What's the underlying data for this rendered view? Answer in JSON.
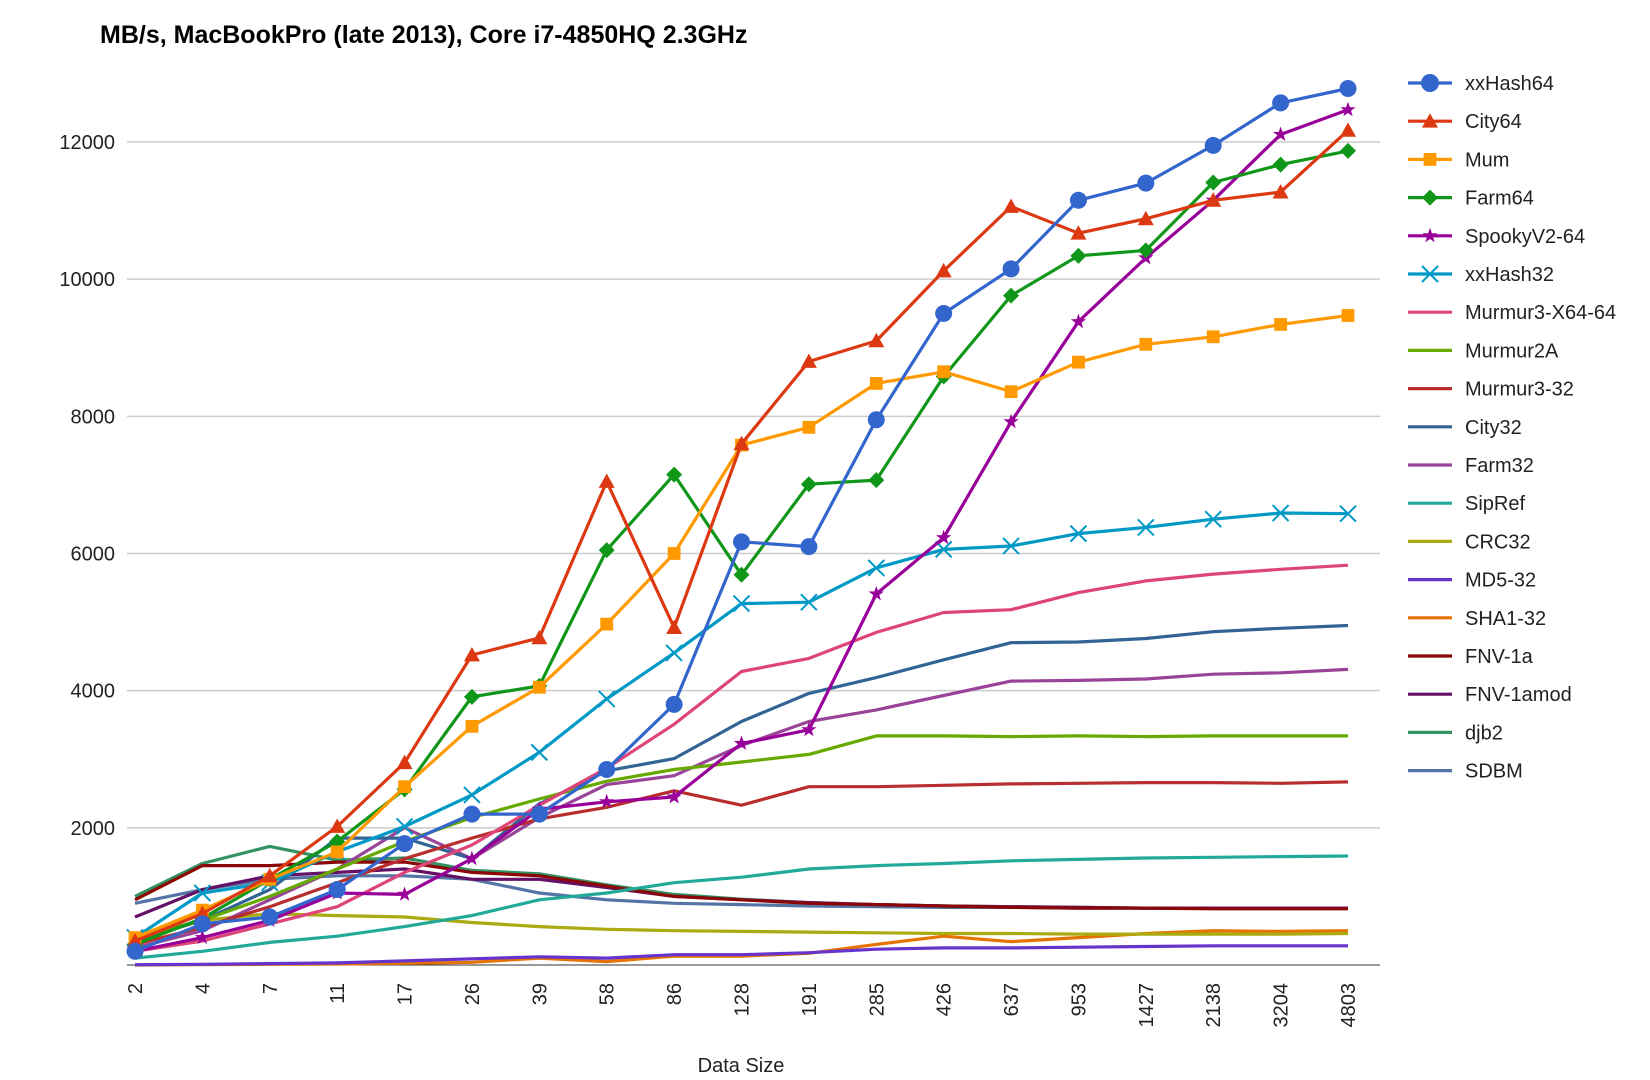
{
  "chart_data": {
    "type": "line",
    "title": "MB/s, MacBookPro (late 2013), Core i7-4850HQ 2.3GHz",
    "xlabel": "Data Size",
    "ylabel": "",
    "categories": [
      "2",
      "4",
      "7",
      "11",
      "17",
      "26",
      "39",
      "58",
      "86",
      "128",
      "191",
      "285",
      "426",
      "637",
      "953",
      "1427",
      "2138",
      "3204",
      "4803"
    ],
    "ylim": [
      0,
      12800
    ],
    "yticks": [
      2000,
      4000,
      6000,
      8000,
      10000,
      12000
    ],
    "grid": true,
    "legend": "right",
    "series": [
      {
        "name": "xxHash64",
        "color": "#3366cc",
        "marker": "circle",
        "values": [
          200,
          600,
          700,
          1100,
          1770,
          2200,
          2200,
          2850,
          3800,
          6170,
          6100,
          7950,
          9500,
          10150,
          11150,
          11400,
          11950,
          12570,
          12780
        ]
      },
      {
        "name": "City64",
        "color": "#dc3912",
        "marker": "triangle",
        "values": [
          350,
          750,
          1300,
          2020,
          2950,
          4520,
          4770,
          7050,
          4920,
          7600,
          8800,
          9100,
          10120,
          11060,
          10670,
          10880,
          11150,
          11270,
          12170
        ]
      },
      {
        "name": "Mum",
        "color": "#ff9900",
        "marker": "square",
        "values": [
          400,
          800,
          1250,
          1650,
          2600,
          3480,
          4050,
          4970,
          6000,
          7580,
          7840,
          8480,
          8650,
          8360,
          8790,
          9050,
          9160,
          9340,
          9470
        ]
      },
      {
        "name": "Farm64",
        "color": "#109618",
        "marker": "diamond",
        "values": [
          300,
          680,
          1250,
          1800,
          2560,
          3910,
          4070,
          6050,
          7150,
          5690,
          7010,
          7070,
          8580,
          9760,
          10340,
          10420,
          11410,
          11670,
          11870
        ]
      },
      {
        "name": "SpookyV2-64",
        "color": "#990099",
        "marker": "star",
        "values": [
          200,
          400,
          650,
          1050,
          1030,
          1550,
          2270,
          2380,
          2450,
          3230,
          3430,
          5410,
          6230,
          7920,
          9380,
          10310,
          11150,
          12110,
          12470
        ]
      },
      {
        "name": "xxHash32",
        "color": "#0099c6",
        "marker": "x",
        "values": [
          400,
          1050,
          1200,
          1650,
          2020,
          2480,
          3100,
          3880,
          4550,
          5270,
          5290,
          5790,
          6060,
          6110,
          6290,
          6380,
          6500,
          6590,
          6580
        ]
      },
      {
        "name": "Murmur3-X64-64",
        "color": "#dd4477",
        "marker": "none",
        "values": [
          200,
          350,
          600,
          850,
          1350,
          1750,
          2330,
          2870,
          3510,
          4280,
          4470,
          4850,
          5140,
          5180,
          5430,
          5600,
          5700,
          5770,
          5830
        ]
      },
      {
        "name": "Murmur2A",
        "color": "#66aa00",
        "marker": "none",
        "values": [
          400,
          650,
          1000,
          1400,
          1800,
          2150,
          2420,
          2680,
          2850,
          2960,
          3070,
          3340,
          3340,
          3330,
          3340,
          3330,
          3340,
          3340,
          3340
        ]
      },
      {
        "name": "Murmur3-32",
        "color": "#b82e2e",
        "marker": "none",
        "values": [
          300,
          550,
          850,
          1200,
          1550,
          1850,
          2130,
          2300,
          2540,
          2330,
          2600,
          2600,
          2620,
          2640,
          2650,
          2660,
          2660,
          2650,
          2670
        ]
      },
      {
        "name": "City32",
        "color": "#316395",
        "marker": "none",
        "values": [
          350,
          650,
          1100,
          1850,
          1850,
          1550,
          2350,
          2830,
          3010,
          3550,
          3960,
          4190,
          4450,
          4700,
          4710,
          4760,
          4860,
          4910,
          4950
        ]
      },
      {
        "name": "Farm32",
        "color": "#994499",
        "marker": "none",
        "values": [
          250,
          500,
          950,
          1400,
          2000,
          1550,
          2150,
          2630,
          2760,
          3200,
          3550,
          3720,
          3930,
          4140,
          4150,
          4170,
          4240,
          4260,
          4310
        ]
      },
      {
        "name": "SipRef",
        "color": "#22aa99",
        "marker": "none",
        "values": [
          100,
          200,
          330,
          420,
          560,
          720,
          950,
          1050,
          1200,
          1280,
          1400,
          1450,
          1480,
          1520,
          1540,
          1560,
          1570,
          1580,
          1590
        ]
      },
      {
        "name": "CRC32",
        "color": "#aaaa11",
        "marker": "none",
        "values": [
          400,
          650,
          750,
          720,
          700,
          620,
          560,
          520,
          500,
          490,
          480,
          470,
          460,
          460,
          450,
          450,
          450,
          450,
          460
        ]
      },
      {
        "name": "MD5-32",
        "color": "#6633cc",
        "marker": "none",
        "values": [
          5,
          10,
          20,
          30,
          60,
          90,
          120,
          100,
          150,
          150,
          180,
          230,
          250,
          250,
          260,
          270,
          280,
          280,
          280
        ]
      },
      {
        "name": "SHA1-32",
        "color": "#e67300",
        "marker": "none",
        "values": [
          0,
          5,
          10,
          15,
          25,
          40,
          100,
          50,
          130,
          130,
          170,
          300,
          420,
          340,
          400,
          460,
          500,
          490,
          500
        ]
      },
      {
        "name": "FNV-1a",
        "color": "#8b0707",
        "marker": "none",
        "values": [
          950,
          1450,
          1450,
          1500,
          1500,
          1350,
          1300,
          1150,
          1000,
          950,
          900,
          880,
          860,
          840,
          830,
          830,
          820,
          820,
          820
        ]
      },
      {
        "name": "FNV-1amod",
        "color": "#651067",
        "marker": "none",
        "values": [
          700,
          1100,
          1300,
          1350,
          1400,
          1250,
          1250,
          1130,
          1000,
          950,
          910,
          880,
          860,
          850,
          840,
          830,
          830,
          830,
          830
        ]
      },
      {
        "name": "djb2",
        "color": "#329262",
        "marker": "none",
        "values": [
          1000,
          1480,
          1730,
          1530,
          1560,
          1380,
          1330,
          1170,
          1030,
          960,
          910,
          880,
          860,
          850,
          840,
          830,
          830,
          830,
          830
        ]
      },
      {
        "name": "SDBM",
        "color": "#5574a6",
        "marker": "none",
        "values": [
          900,
          1100,
          1250,
          1300,
          1300,
          1250,
          1050,
          950,
          900,
          880,
          860,
          850,
          840,
          840,
          830,
          830,
          830,
          830,
          830
        ]
      }
    ]
  }
}
